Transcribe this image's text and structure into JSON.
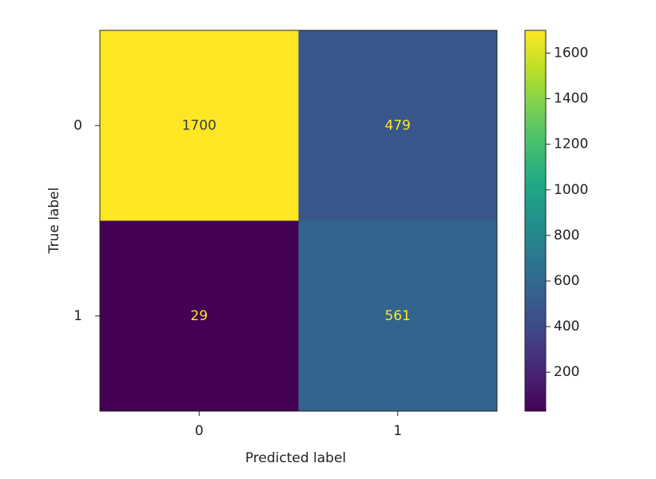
{
  "chart_data": {
    "type": "heatmap",
    "x_label": "Predicted label",
    "y_label": "True label",
    "x_categories": [
      "0",
      "1"
    ],
    "y_categories": [
      "0",
      "1"
    ],
    "values": [
      [
        1700,
        479
      ],
      [
        29,
        561
      ]
    ],
    "colormap": "viridis",
    "zlim": [
      29,
      1700
    ],
    "zticks": [
      200,
      400,
      600,
      800,
      1000,
      1200,
      1400,
      1600
    ]
  }
}
